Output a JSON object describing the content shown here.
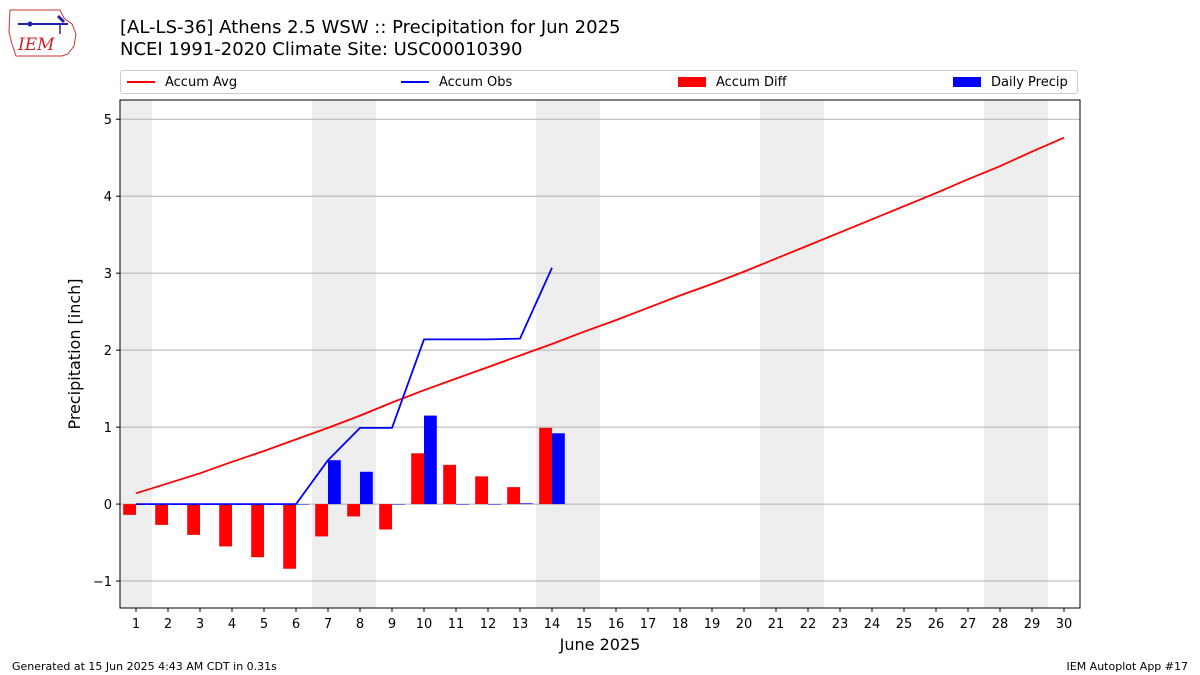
{
  "header": {
    "logo_text": "IEM",
    "title_line1": "[AL-LS-36] Athens 2.5 WSW :: Precipitation for Jun 2025",
    "title_line2": "NCEI 1991-2020 Climate Site: USC00010390"
  },
  "legend": {
    "accum_avg": "Accum Avg",
    "accum_obs": "Accum Obs",
    "accum_diff": "Accum Diff",
    "daily_precip": "Daily Precip"
  },
  "footer": {
    "generated": "Generated at 15 Jun 2025 4:43 AM CDT in 0.31s",
    "app": "IEM Autoplot App #17"
  },
  "colors": {
    "avg": "#ff0000",
    "obs": "#0000ff",
    "diff": "#ff0000",
    "daily": "#0000ff",
    "weekend_shade": "#eeeeee",
    "grid": "#b0b0b0"
  },
  "chart_data": {
    "type": "bar",
    "xlabel": "June 2025",
    "ylabel": "Precipitation [inch]",
    "xlim": [
      0.5,
      30.5
    ],
    "ylim": [
      -1.35,
      5.25
    ],
    "yticks": [
      -1,
      0,
      1,
      2,
      3,
      4,
      5
    ],
    "ytick_labels": [
      "−1",
      "0",
      "1",
      "2",
      "3",
      "4",
      "5"
    ],
    "x_days": [
      1,
      2,
      3,
      4,
      5,
      6,
      7,
      8,
      9,
      10,
      11,
      12,
      13,
      14,
      15,
      16,
      17,
      18,
      19,
      20,
      21,
      22,
      23,
      24,
      25,
      26,
      27,
      28,
      29,
      30
    ],
    "shaded_days": [
      [
        0.5,
        1.5
      ],
      [
        6.5,
        8.5
      ],
      [
        13.5,
        15.5
      ],
      [
        20.5,
        22.5
      ],
      [
        27.5,
        29.5
      ]
    ],
    "grid": "horizontal",
    "legend_position": "top",
    "series": [
      {
        "name": "Accum Avg",
        "type": "line",
        "x": [
          1,
          2,
          3,
          4,
          5,
          6,
          7,
          8,
          9,
          10,
          11,
          12,
          13,
          14,
          15,
          16,
          17,
          18,
          19,
          20,
          21,
          22,
          23,
          24,
          25,
          26,
          27,
          28,
          29,
          30
        ],
        "values": [
          0.14,
          0.27,
          0.4,
          0.55,
          0.69,
          0.84,
          0.99,
          1.15,
          1.32,
          1.48,
          1.63,
          1.78,
          1.93,
          2.08,
          2.24,
          2.39,
          2.55,
          2.71,
          2.86,
          3.02,
          3.19,
          3.36,
          3.53,
          3.7,
          3.87,
          4.04,
          4.22,
          4.39,
          4.58,
          4.76
        ]
      },
      {
        "name": "Accum Obs",
        "type": "line",
        "x": [
          1,
          2,
          3,
          4,
          5,
          6,
          7,
          8,
          9,
          10,
          11,
          12,
          13,
          14
        ],
        "values": [
          0.0,
          0.0,
          0.0,
          0.0,
          0.0,
          0.0,
          0.57,
          0.99,
          0.99,
          2.14,
          2.14,
          2.14,
          2.15,
          3.07
        ]
      },
      {
        "name": "Accum Diff",
        "type": "bar",
        "x": [
          1,
          2,
          3,
          4,
          5,
          6,
          7,
          8,
          9,
          10,
          11,
          12,
          13,
          14
        ],
        "values": [
          -0.14,
          -0.27,
          -0.4,
          -0.55,
          -0.69,
          -0.84,
          -0.42,
          -0.16,
          -0.33,
          0.66,
          0.51,
          0.36,
          0.22,
          0.99
        ]
      },
      {
        "name": "Daily Precip",
        "type": "bar",
        "x": [
          1,
          2,
          3,
          4,
          5,
          6,
          7,
          8,
          9,
          10,
          11,
          12,
          13,
          14
        ],
        "values": [
          0.0,
          0.0,
          0.0,
          0.0,
          0.0,
          0.0,
          0.57,
          0.42,
          0.0,
          1.15,
          0.0,
          0.0,
          0.01,
          0.92
        ]
      }
    ]
  }
}
